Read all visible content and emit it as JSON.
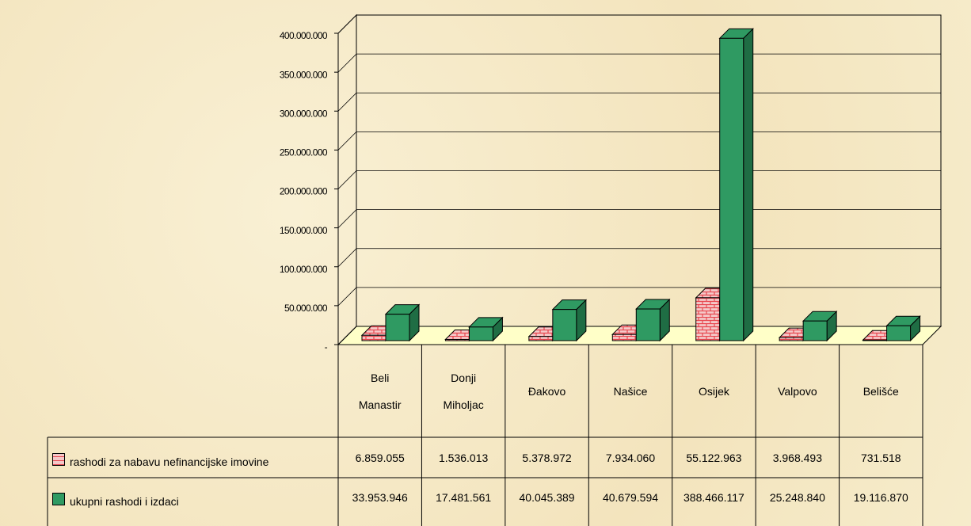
{
  "chart_data": {
    "type": "bar3d",
    "categories": [
      "Beli Manastir",
      "Donji Miholjac",
      "Đakovo",
      "Našice",
      "Osijek",
      "Valpovo",
      "Belišće"
    ],
    "series": [
      {
        "name": "rashodi za nabavu nefinancijske imovine",
        "color": "#e8474f",
        "values": [
          6859055,
          1536013,
          5378972,
          7934060,
          55122963,
          3968493,
          731518
        ],
        "value_labels": [
          "6.859.055",
          "1.536.013",
          "5.378.972",
          "7.934.060",
          "55.122.963",
          "3.968.493",
          "731.518"
        ]
      },
      {
        "name": "ukupni rashodi i izdaci",
        "color": "#2f9a62",
        "values": [
          33953946,
          17481561,
          40045389,
          40679594,
          388466117,
          25248840,
          19116870
        ],
        "value_labels": [
          "33.953.946",
          "17.481.561",
          "40.045.389",
          "40.679.594",
          "388.466.117",
          "25.248.840",
          "19.116.870"
        ]
      }
    ],
    "ylim": [
      0,
      400000000
    ],
    "yticks": [
      {
        "value": 0,
        "label": "-"
      },
      {
        "value": 50000000,
        "label": "50.000.000"
      },
      {
        "value": 100000000,
        "label": "100.000.000"
      },
      {
        "value": 150000000,
        "label": "150.000.000"
      },
      {
        "value": 200000000,
        "label": "200.000.000"
      },
      {
        "value": 250000000,
        "label": "250.000.000"
      },
      {
        "value": 300000000,
        "label": "300.000.000"
      },
      {
        "value": 350000000,
        "label": "350.000.000"
      },
      {
        "value": 400000000,
        "label": "400.000.000"
      }
    ],
    "grid": true
  }
}
